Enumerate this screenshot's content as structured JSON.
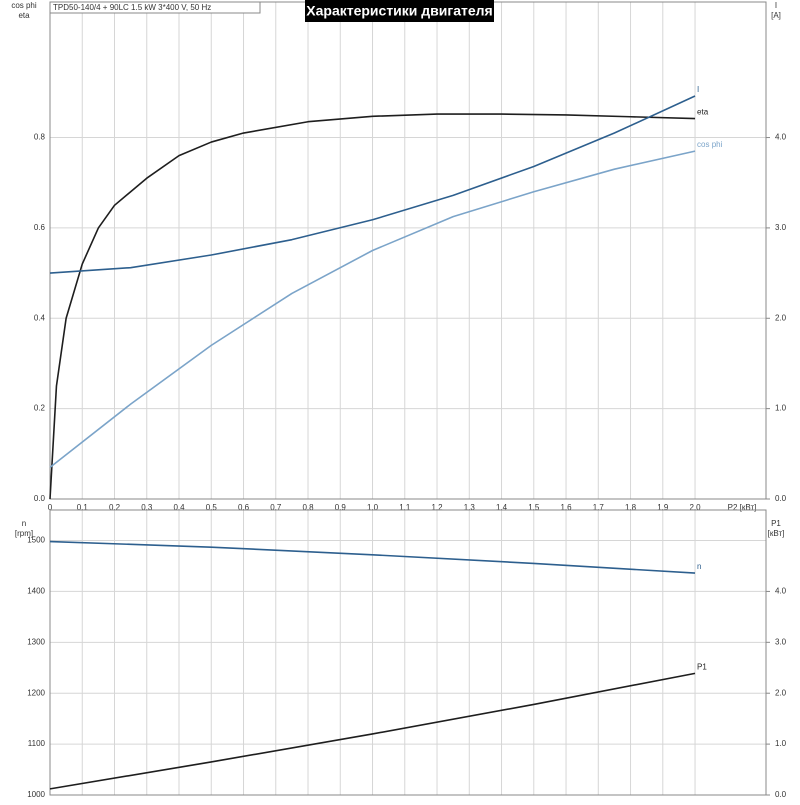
{
  "chart_data": [
    {
      "type": "line",
      "title": "Характеристики двигателя",
      "subtitle": "TPD50-140/4 + 90LC  1.5 kW  3*400 V, 50 Hz",
      "xlabel": "P2 [кВт]",
      "ylabel": [
        "cos phi",
        "eta"
      ],
      "y2label": [
        "I",
        "[A]"
      ],
      "xlim": [
        0,
        2.22
      ],
      "ylim": [
        0,
        1.1
      ],
      "y2lim": [
        0,
        5.5
      ],
      "xticks": [
        0,
        {
          "value": 0.1,
          "label": "0,1"
        },
        {
          "value": 0.2,
          "label": "0,2"
        },
        {
          "value": 0.3,
          "label": "0,3"
        },
        {
          "value": 0.4,
          "label": "0,4"
        },
        {
          "value": 0.5,
          "label": "0,5"
        },
        {
          "value": 0.6,
          "label": "0,6"
        },
        {
          "value": 0.7,
          "label": "0,7"
        },
        {
          "value": 0.8,
          "label": "0,8"
        },
        {
          "value": 0.9,
          "label": "0,9"
        },
        {
          "value": 1.0,
          "label": "1,0"
        },
        {
          "value": 1.1,
          "label": "1,1"
        },
        {
          "value": 1.2,
          "label": "1,2"
        },
        {
          "value": 1.3,
          "label": "1,3"
        },
        {
          "value": 1.4,
          "label": "1,4"
        },
        {
          "value": 1.5,
          "label": "1,5"
        },
        {
          "value": 1.6,
          "label": "1,6"
        },
        {
          "value": 1.7,
          "label": "1,7"
        },
        {
          "value": 1.8,
          "label": "1,8"
        },
        {
          "value": 1.9,
          "label": "1,9"
        },
        {
          "value": 2.0,
          "label": "2,0"
        }
      ],
      "yticks": [
        {
          "value": 0,
          "label": "0.0"
        },
        0.2,
        0.4,
        0.6,
        0.8
      ],
      "y2ticks": [
        {
          "value": 0,
          "label": "0.0"
        },
        {
          "value": 1,
          "label": "1.0"
        },
        {
          "value": 2,
          "label": "2.0"
        },
        {
          "value": 3,
          "label": "3.0"
        },
        {
          "value": 4,
          "label": "4.0"
        }
      ],
      "grid": true,
      "series": [
        {
          "name": "eta",
          "color": "#1e1e1e",
          "x": [
            0,
            0.02,
            0.05,
            0.1,
            0.15,
            0.2,
            0.3,
            0.4,
            0.5,
            0.6,
            0.8,
            1.0,
            1.2,
            1.4,
            1.6,
            1.8,
            2.0
          ],
          "values": [
            0,
            0.25,
            0.4,
            0.52,
            0.6,
            0.65,
            0.71,
            0.76,
            0.79,
            0.81,
            0.835,
            0.847,
            0.852,
            0.852,
            0.85,
            0.846,
            0.842
          ]
        },
        {
          "name": "cos phi",
          "color": "#7ba4c9",
          "x": [
            0,
            0.25,
            0.5,
            0.75,
            1.0,
            1.25,
            1.5,
            1.75,
            2.0
          ],
          "values": [
            0.07,
            0.21,
            0.34,
            0.455,
            0.55,
            0.625,
            0.68,
            0.73,
            0.77
          ]
        },
        {
          "name": "I",
          "color": "#2d5f8e",
          "axis": "y2",
          "x": [
            0,
            0.25,
            0.5,
            0.75,
            1.0,
            1.25,
            1.5,
            1.75,
            2.0
          ],
          "values": [
            2.5,
            2.56,
            2.7,
            2.87,
            3.09,
            3.36,
            3.68,
            4.05,
            4.46
          ]
        }
      ]
    },
    {
      "type": "line",
      "ylabel": [
        "n",
        "[rpm]"
      ],
      "y2label": [
        "P1",
        "[кВт]"
      ],
      "xlim": [
        0,
        2.22
      ],
      "ylim": [
        1000,
        1560
      ],
      "y2lim": [
        0,
        5.6
      ],
      "yticks": [
        1000,
        1100,
        1200,
        1300,
        1400,
        1500
      ],
      "y2ticks": [
        {
          "value": 0,
          "label": "0.0"
        },
        {
          "value": 1,
          "label": "1.0"
        },
        {
          "value": 2,
          "label": "2.0"
        },
        {
          "value": 3,
          "label": "3.0"
        },
        {
          "value": 4,
          "label": "4.0"
        }
      ],
      "grid": true,
      "series": [
        {
          "name": "n",
          "color": "#2d5f8e",
          "x": [
            0,
            0.5,
            1.0,
            1.5,
            2.0
          ],
          "values": [
            1498,
            1487,
            1472,
            1455,
            1436
          ]
        },
        {
          "name": "P1",
          "color": "#1e1e1e",
          "axis": "y2",
          "x": [
            0,
            0.5,
            1.0,
            1.5,
            2.0
          ],
          "values": [
            0.12,
            0.65,
            1.2,
            1.78,
            2.39
          ]
        }
      ]
    }
  ]
}
